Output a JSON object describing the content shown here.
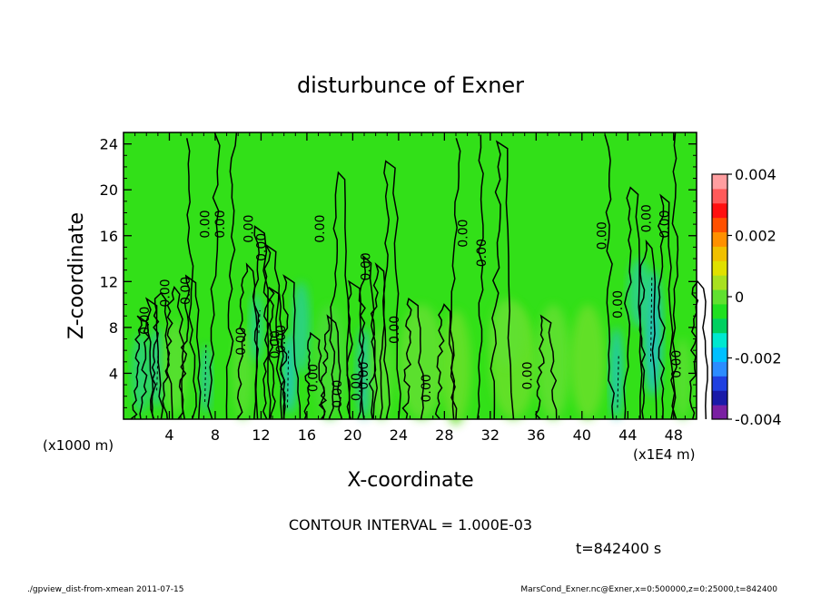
{
  "chart_data": {
    "type": "heatmap",
    "title": "disturbunce of Exner",
    "xlabel": "X-coordinate",
    "ylabel": "Z-coordinate",
    "x_unit_left": "(x1000 m)",
    "x_unit_right": "(x1E4 m)",
    "x_ticks": [
      4,
      8,
      12,
      16,
      20,
      24,
      28,
      32,
      36,
      40,
      44,
      48
    ],
    "y_ticks": [
      4,
      8,
      12,
      16,
      20,
      24
    ],
    "xlim": [
      0,
      50
    ],
    "ylim": [
      0,
      25
    ],
    "colorbar": {
      "min": -0.004,
      "max": 0.004,
      "tick_labels": [
        "0.004",
        "0.002",
        "0",
        "-0.002",
        "-0.004"
      ],
      "tick_values": [
        0.004,
        0.002,
        0,
        -0.002,
        -0.004
      ],
      "colors": [
        "#7a1fa2",
        "#1a1aa8",
        "#2040e0",
        "#2c8cff",
        "#00c0ff",
        "#00e8d0",
        "#00d060",
        "#20e020",
        "#60e030",
        "#a8e020",
        "#e0e000",
        "#f0c000",
        "#ff9000",
        "#ff5000",
        "#ff1010",
        "#ff5a5a",
        "#ff9ea0"
      ]
    },
    "contour_interval_text": "CONTOUR INTERVAL = 1.000E-03",
    "time_text": "t=842400 s",
    "contour_labels": [
      {
        "x": 2.2,
        "z": 8.6,
        "text": "0.00"
      },
      {
        "x": 4.0,
        "z": 11.0,
        "text": "0.00"
      },
      {
        "x": 5.8,
        "z": 11.2,
        "text": "0.00"
      },
      {
        "x": 7.5,
        "z": 17.0,
        "text": "0.00"
      },
      {
        "x": 8.8,
        "z": 17.0,
        "text": "0.00"
      },
      {
        "x": 10.6,
        "z": 6.8,
        "text": "0.00"
      },
      {
        "x": 11.3,
        "z": 16.6,
        "text": "0.00"
      },
      {
        "x": 12.4,
        "z": 15.0,
        "text": "0.00"
      },
      {
        "x": 13.6,
        "z": 6.5,
        "text": "0.00"
      },
      {
        "x": 14.1,
        "z": 7.0,
        "text": "0.00"
      },
      {
        "x": 16.9,
        "z": 3.6,
        "text": "0.00"
      },
      {
        "x": 17.5,
        "z": 16.6,
        "text": "0.00"
      },
      {
        "x": 19.0,
        "z": 2.2,
        "text": "0.00"
      },
      {
        "x": 20.7,
        "z": 2.8,
        "text": "0.00"
      },
      {
        "x": 21.3,
        "z": 3.8,
        "text": "0.00"
      },
      {
        "x": 21.5,
        "z": 13.3,
        "text": "0.00"
      },
      {
        "x": 24.0,
        "z": 7.8,
        "text": "0.00"
      },
      {
        "x": 26.8,
        "z": 2.7,
        "text": "0.00"
      },
      {
        "x": 30.0,
        "z": 16.2,
        "text": "0.00"
      },
      {
        "x": 31.6,
        "z": 14.5,
        "text": "0.00"
      },
      {
        "x": 35.6,
        "z": 3.8,
        "text": "0.00"
      },
      {
        "x": 42.1,
        "z": 16.0,
        "text": "0.00"
      },
      {
        "x": 43.5,
        "z": 10.0,
        "text": "0.00"
      },
      {
        "x": 46.0,
        "z": 17.5,
        "text": "0.00"
      },
      {
        "x": 47.6,
        "z": 17.0,
        "text": "0.00"
      },
      {
        "x": 48.6,
        "z": 4.8,
        "text": "0.00"
      }
    ]
  },
  "footer": {
    "left": "./gpview_dist-from-xmean  2011-07-15",
    "right": "MarsCond_Exner.nc@Exner,x=0:500000,z=0:25000,t=842400"
  }
}
